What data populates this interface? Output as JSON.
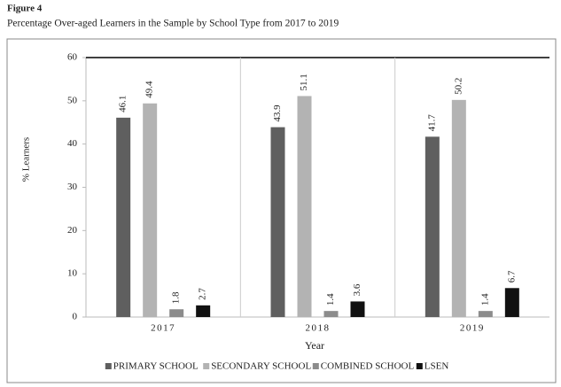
{
  "figure_label": "Figure 4",
  "chart_data": {
    "type": "bar",
    "title": "Percentage Over-aged Learners in the Sample by School Type from 2017 to 2019",
    "y_label": "% Learners",
    "x_label": "Year",
    "categories": [
      "2017",
      "2018",
      "2019"
    ],
    "series": [
      {
        "name": "PRIMARY SCHOOL",
        "color": "#5f5f5f",
        "values": [
          46.1,
          43.9,
          41.7
        ]
      },
      {
        "name": "SECONDARY SCHOOL",
        "color": "#b3b3b3",
        "values": [
          49.4,
          51.1,
          50.2
        ]
      },
      {
        "name": "COMBINED SCHOOL",
        "color": "#8c8c8c",
        "values": [
          1.8,
          1.4,
          1.4
        ]
      },
      {
        "name": "LSEN",
        "color": "#111111",
        "values": [
          2.7,
          3.6,
          6.7
        ]
      }
    ],
    "ylim": [
      0,
      60
    ],
    "yticks": [
      0,
      10,
      20,
      30,
      40,
      50,
      60
    ],
    "legend": "bottom"
  }
}
